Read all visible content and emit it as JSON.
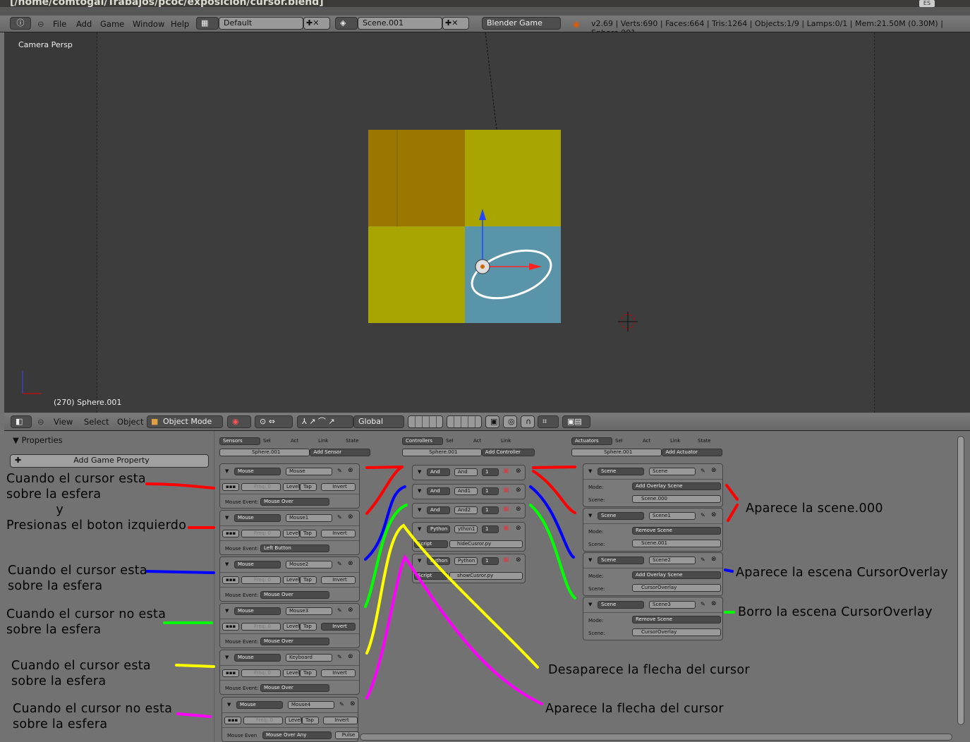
{
  "window": {
    "title": "[/home/comtogal/Trabajos/pcoc/exposicion/cursor.blend]",
    "lang_badge": "ES"
  },
  "top_header": {
    "menus": [
      "File",
      "Add",
      "Game",
      "Window",
      "Help"
    ],
    "layout": "Default",
    "scene": "Scene.001",
    "engine": "Blender Game",
    "stats": "v2.69 | Verts:690 | Faces:664 | Tris:1264 | Objects:1/9 | Lamps:0/1 | Mem:21.50M (0.30M) | Sphere.001"
  },
  "viewport": {
    "view_name": "Camera Persp",
    "object_info": "(270) Sphere.001",
    "colors": {
      "yellow": "#a8a400",
      "orange": "#9a7800",
      "blue": "#5a94a8"
    }
  },
  "view3d_header": {
    "menus": [
      "View",
      "Select",
      "Object"
    ],
    "mode": "Object Mode",
    "orientation": "Global"
  },
  "properties": {
    "title": "Properties",
    "add_property": "Add Game Property"
  },
  "sensors": {
    "header": "Sensors",
    "checks": [
      "Sel",
      "Act",
      "Link",
      "State"
    ],
    "object": "Sphere.001",
    "add": "Add Sensor",
    "items": [
      {
        "type": "Mouse",
        "name": "Mouse",
        "freq": "Freq: 0",
        "level": "Level",
        "tap": "Tap",
        "invert": "Invert",
        "event_label": "Mouse Event:",
        "event": "Mouse Over"
      },
      {
        "type": "Mouse",
        "name": "Mouse1",
        "freq": "Freq: 0",
        "level": "Level",
        "tap": "Tap",
        "invert": "Invert",
        "event_label": "Mouse Event:",
        "event": "Left Button"
      },
      {
        "type": "Mouse",
        "name": "Mouse2",
        "freq": "Freq: 0",
        "level": "Level",
        "tap": "Tap",
        "invert": "Invert",
        "event_label": "Mouse Event:",
        "event": "Mouse Over"
      },
      {
        "type": "Mouse",
        "name": "Mouse3",
        "freq": "Freq: 0",
        "level": "Level",
        "tap": "Tap",
        "invert": "Invert",
        "event_label": "Mouse Event:",
        "event": "Mouse Over"
      },
      {
        "type": "Mouse",
        "name": "Keyboard",
        "freq": "Freq: 0",
        "level": "Level",
        "tap": "Tap",
        "invert": "Invert",
        "event_label": "Mouse Event:",
        "event": "Mouse Over"
      },
      {
        "type": "Mouse",
        "name": "Mouse4",
        "freq": "Freq: 0",
        "level": "Level",
        "tap": "Tap",
        "invert": "Invert",
        "event_label": "Mouse Even",
        "event": "Mouse Over Any",
        "pulse": "Pulse"
      }
    ]
  },
  "controllers": {
    "header": "Controllers",
    "checks": [
      "Sel",
      "Act",
      "Link"
    ],
    "object": "Sphere.001",
    "add": "Add Controller",
    "items": [
      {
        "type": "And",
        "name": "And",
        "state": "1"
      },
      {
        "type": "And",
        "name": "And1",
        "state": "1"
      },
      {
        "type": "And",
        "name": "And2",
        "state": "1"
      },
      {
        "type": "Python",
        "name": "ython1",
        "state": "1",
        "script_label": "Script",
        "script": "hideCusror.py"
      },
      {
        "type": "Python",
        "name": "Python",
        "state": "1",
        "script_label": "Script",
        "script": "showCusror.py"
      }
    ]
  },
  "actuators": {
    "header": "Actuators",
    "checks": [
      "Sel",
      "Act",
      "Link",
      "State"
    ],
    "object": "Sphere.001",
    "add": "Add Actuator",
    "items": [
      {
        "type": "Scene",
        "name": "Scene",
        "mode_label": "Mode:",
        "mode": "Add Overlay Scene",
        "scene_label": "Scene:",
        "scene": "Scene.000"
      },
      {
        "type": "Scene",
        "name": "Scene1",
        "mode_label": "Mode:",
        "mode": "Remove Scene",
        "scene_label": "Scene:",
        "scene": "Scene.001"
      },
      {
        "type": "Scene",
        "name": "Scene2",
        "mode_label": "Mode:",
        "mode": "Add Overlay Scene",
        "scene_label": "Scene:",
        "scene": "CursorOverlay"
      },
      {
        "type": "Scene",
        "name": "Scene3",
        "mode_label": "Mode:",
        "mode": "Remove Scene",
        "scene_label": "Scene:",
        "scene": "CursorOverlay"
      }
    ]
  },
  "annotations": {
    "left": [
      "Cuando el cursor esta\nsobre la esfera\n            y\nPresionas el boton izquierdo",
      "Cuando el cursor esta\nsobre la esfera",
      "Cuando el cursor no esta\nsobre la esfera",
      "Cuando el cursor esta\nsobre la esfera",
      "Cuando el cursor no esta\nsobre la esfera"
    ],
    "right": [
      "Aparece la scene.000",
      "Aparece la escena CursorOverlay",
      "Borro la escena CursorOverlay",
      "Desaparece la flecha del cursor",
      "Aparece la flecha del cursor"
    ],
    "colors": {
      "red": "#ff0000",
      "blue": "#0000ff",
      "green": "#00ff00",
      "yellow": "#ffff00",
      "magenta": "#ff00ff"
    }
  }
}
